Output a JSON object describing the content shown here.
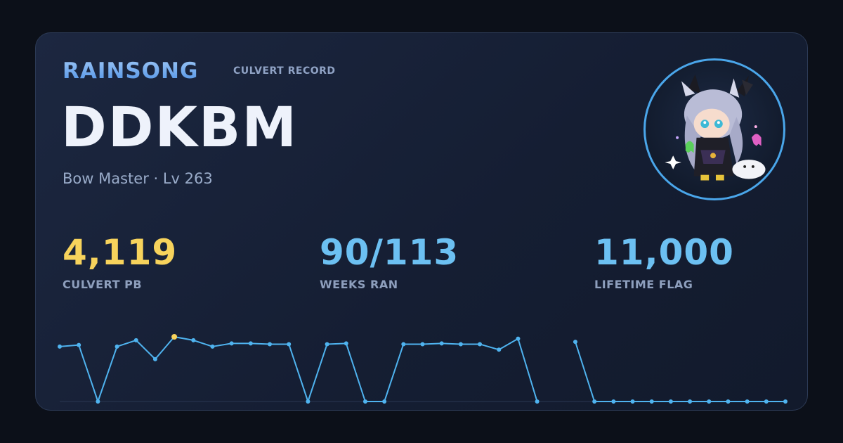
{
  "header": {
    "guild": "RAINSONG",
    "subtitle": "CULVERT RECORD"
  },
  "character": {
    "name": "DDKBM",
    "class_level": "Bow Master · Lv 263",
    "avatar_icon": "character-avatar-icon"
  },
  "stats": [
    {
      "value": "4,119",
      "label": "CULVERT PB",
      "color": "#f7d35c"
    },
    {
      "value": "90/113",
      "label": "WEEKS RAN",
      "color": "#6cc0f2"
    },
    {
      "value": "11,000",
      "label": "LIFETIME FLAG",
      "color": "#6cc0f2"
    }
  ],
  "colors": {
    "line": "#4fb3ef",
    "pb_point": "#f7d35c",
    "baseline": "#2a3752"
  },
  "chart_data": {
    "type": "line",
    "grid": false,
    "ylim": [
      0,
      4119
    ],
    "highlight_max": true,
    "series": [
      {
        "values": [
          3500,
          3600,
          0,
          3500,
          3900,
          2700,
          4119,
          3900,
          3500,
          3700,
          3700,
          3650,
          3650,
          0,
          3650,
          3700,
          0,
          0,
          3650,
          3650,
          3700,
          3650,
          3650,
          3300,
          4000,
          0,
          null,
          3800,
          0,
          0,
          0,
          0,
          0,
          0,
          0,
          0,
          0,
          0,
          0
        ]
      }
    ]
  }
}
